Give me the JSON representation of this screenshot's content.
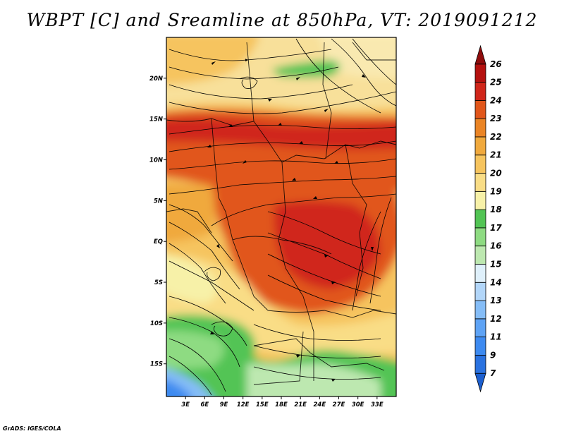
{
  "title": "WBPT [C] and Sreamline at 850hPa, VT: 2019091212",
  "credit": "GrADS: IGES/COLA",
  "map": {
    "lon_range": [
      0,
      36
    ],
    "lat_range": [
      -19,
      25
    ],
    "lat_ticks": [
      {
        "value": 20,
        "label": "20N"
      },
      {
        "value": 15,
        "label": "15N"
      },
      {
        "value": 10,
        "label": "10N"
      },
      {
        "value": 5,
        "label": "5N"
      },
      {
        "value": 0,
        "label": "EQ"
      },
      {
        "value": -5,
        "label": "5S"
      },
      {
        "value": -10,
        "label": "10S"
      },
      {
        "value": -15,
        "label": "15S"
      }
    ],
    "lon_ticks": [
      {
        "value": 3,
        "label": "3E"
      },
      {
        "value": 6,
        "label": "6E"
      },
      {
        "value": 9,
        "label": "9E"
      },
      {
        "value": 12,
        "label": "12E"
      },
      {
        "value": 15,
        "label": "15E"
      },
      {
        "value": 18,
        "label": "18E"
      },
      {
        "value": 21,
        "label": "21E"
      },
      {
        "value": 24,
        "label": "24E"
      },
      {
        "value": 27,
        "label": "27E"
      },
      {
        "value": 30,
        "label": "30E"
      },
      {
        "value": 33,
        "label": "33E"
      }
    ]
  },
  "colorbar": {
    "levels": [
      "7",
      "9",
      "11",
      "12",
      "13",
      "14",
      "15",
      "16",
      "17",
      "18",
      "19",
      "20",
      "21",
      "22",
      "23",
      "24",
      "25",
      "26"
    ],
    "colors": [
      "#1c5fcf",
      "#2a72e0",
      "#3d8af0",
      "#5ea3f5",
      "#85bdf7",
      "#b2d6f9",
      "#dff0fb",
      "#bde8b0",
      "#8edb82",
      "#52c454",
      "#f7f1a8",
      "#f9dd86",
      "#f6c45e",
      "#f0a93d",
      "#ea8425",
      "#e1561a",
      "#d0261a",
      "#b5110f",
      "#8f0c0c"
    ]
  },
  "colors": {
    "accent_hot": "#d0261a",
    "accent_cool": "#52c454",
    "ocean_cold": "#1c5fcf"
  }
}
